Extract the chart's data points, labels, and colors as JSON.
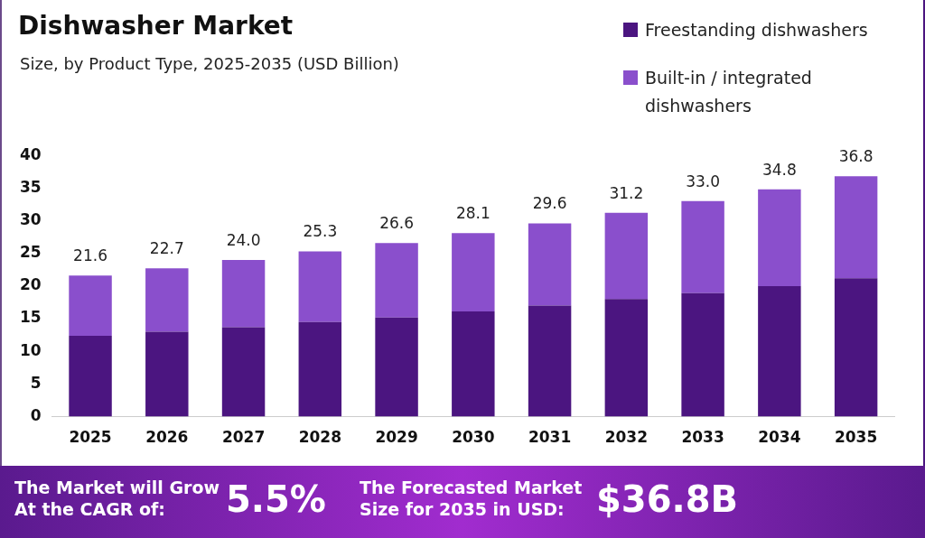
{
  "chart_data": {
    "type": "bar",
    "title": "Dishwasher Market",
    "subtitle": "Size, by Product Type, 2025-2035 (USD Billion)",
    "categories": [
      "2025",
      "2026",
      "2027",
      "2028",
      "2029",
      "2030",
      "2031",
      "2032",
      "2033",
      "2034",
      "2035"
    ],
    "series": [
      {
        "name": "Freestanding dishwashers",
        "color": "#4b1580",
        "values": [
          12.4,
          13.0,
          13.7,
          14.5,
          15.2,
          16.1,
          17.0,
          18.0,
          18.9,
          20.0,
          21.2
        ]
      },
      {
        "name": "Built-in / integrated dishwashers",
        "color": "#8a4fcc",
        "values": [
          9.2,
          9.7,
          10.3,
          10.8,
          11.4,
          12.0,
          12.6,
          13.2,
          14.1,
          14.8,
          15.6
        ]
      }
    ],
    "stacked": true,
    "totals": [
      "21.6",
      "22.7",
      "24.0",
      "25.3",
      "26.6",
      "28.1",
      "29.6",
      "31.2",
      "33.0",
      "34.8",
      "36.8"
    ],
    "ylim": [
      0,
      40
    ],
    "yticks": [
      0,
      5,
      10,
      15,
      20,
      25,
      30,
      35,
      40
    ],
    "grid": false,
    "legend": "top right",
    "annotations": [
      "The Market will Grow At the CAGR of:",
      "5.5%",
      "The Forecasted Market Size for 2035 in USD:",
      "$36.8B"
    ]
  }
}
